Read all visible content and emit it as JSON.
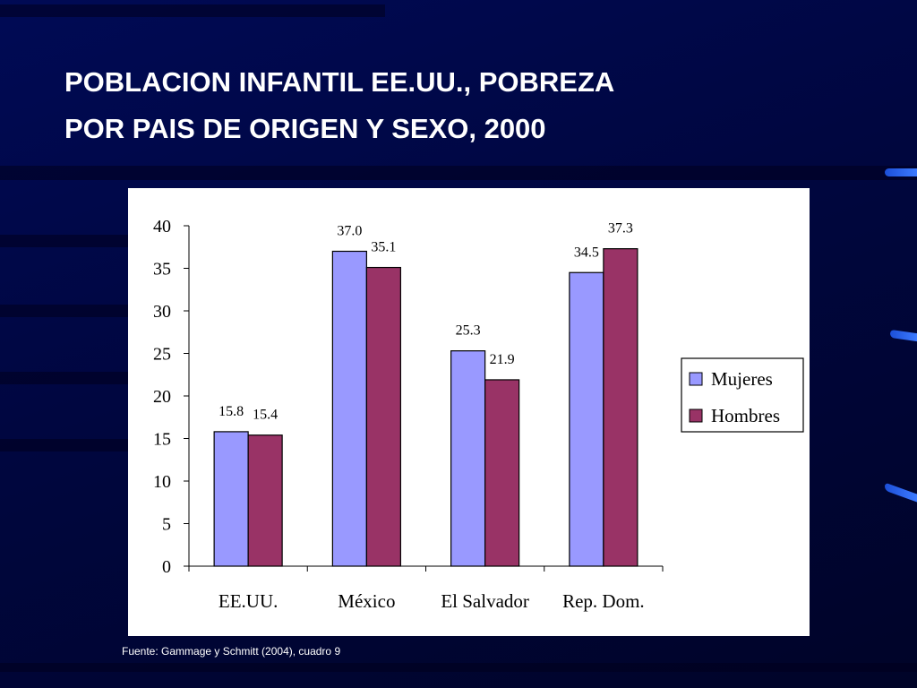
{
  "slide": {
    "title_lines": [
      "POBLACION INFANTIL EE.UU., POBREZA",
      "POR PAIS DE ORIGEN Y SEXO, 2000"
    ],
    "source": "Fuente: Gammage y Schmitt (2004), cuadro  9"
  },
  "chart_data": {
    "type": "bar",
    "title": "",
    "xlabel": "",
    "ylabel": "",
    "categories": [
      "EE.UU.",
      "México",
      "El Salvador",
      "Rep. Dom."
    ],
    "series": [
      {
        "name": "Mujeres",
        "values": [
          15.8,
          37.0,
          25.3,
          34.5
        ],
        "labels": [
          "15.8",
          "37.0",
          "25.3",
          "34.5"
        ],
        "color": "#9999ff"
      },
      {
        "name": "Hombres",
        "values": [
          15.4,
          35.1,
          21.9,
          37.3
        ],
        "labels": [
          "15.4",
          "35.1",
          "21.9",
          "37.3"
        ],
        "color": "#993366"
      }
    ],
    "ylim": [
      0,
      40
    ],
    "yticks": [
      0,
      5,
      10,
      15,
      20,
      25,
      30,
      35,
      40
    ],
    "grid": false,
    "legend_position": "right"
  },
  "colors": {
    "background": "#000a55",
    "panel": "#ffffff",
    "title_text": "#ffffff"
  }
}
